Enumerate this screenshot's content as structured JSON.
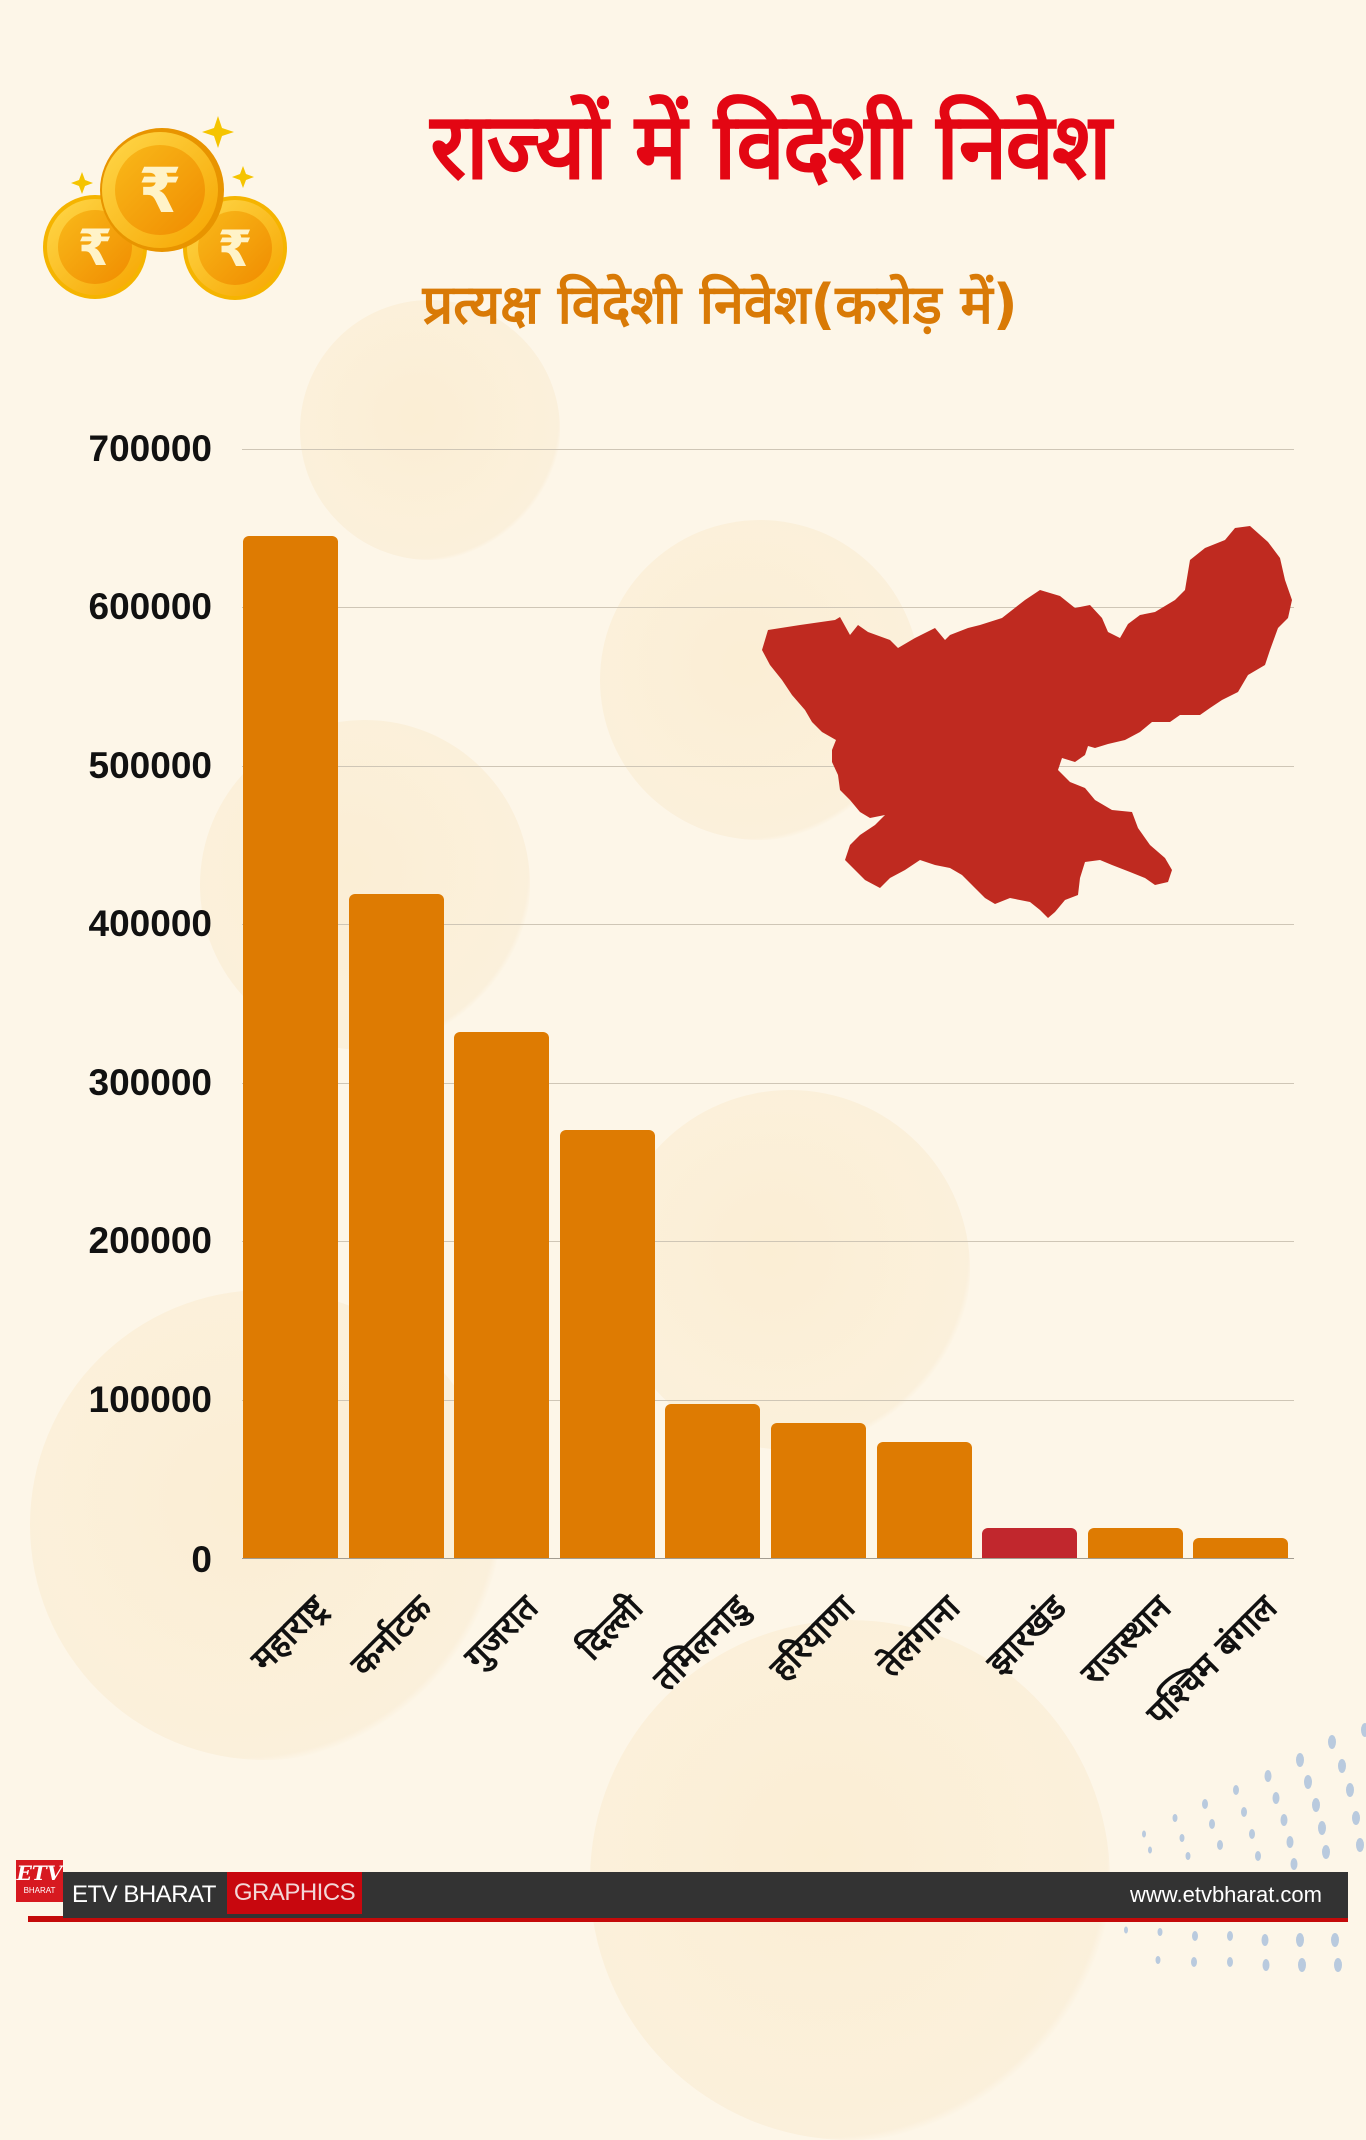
{
  "header": {
    "title": "राज्यों में विदेशी निवेश",
    "subtitle": "प्रत्यक्ष विदेशी निवेश(करोड़ में)"
  },
  "icons": {
    "coins": "rupee-coins-icon",
    "map": "jharkhand-map-icon"
  },
  "colors": {
    "background": "#fdf6e8",
    "title": "#e30613",
    "subtitle": "#d97a06",
    "bar_default": "#de7b02",
    "bar_highlight": "#c1272d",
    "map_fill": "#bf2a20",
    "footer_dark": "#333333",
    "footer_red": "#c8070e"
  },
  "chart_data": {
    "type": "bar",
    "title": "राज्यों में विदेशी निवेश",
    "subtitle": "प्रत्यक्ष विदेशी निवेश(करोड़ में)",
    "xlabel": "",
    "ylabel": "",
    "categories": [
      "महाराष्ट्र",
      "कर्नाटक",
      "गुजरात",
      "दिल्ली",
      "तमिलनाडु",
      "हरियाणा",
      "तेलंगाना",
      "झारखंड",
      "राजस्थान",
      "पश्चिम बंगाल"
    ],
    "values": [
      645000,
      419000,
      332000,
      270000,
      97000,
      85000,
      73000,
      19000,
      19000,
      12600
    ],
    "highlight": "झारखंड",
    "ylim": [
      0,
      700000
    ],
    "yticks": [
      "0",
      "100000",
      "200000",
      "300000",
      "400000",
      "500000",
      "600000",
      "700000"
    ],
    "grid": true,
    "legend": null
  },
  "footer": {
    "logo_text": "ETV",
    "logo_subtext": "BHARAT",
    "brand": "ETV BHARAT",
    "section": "GRAPHICS",
    "url": "www.etvbharat.com"
  }
}
